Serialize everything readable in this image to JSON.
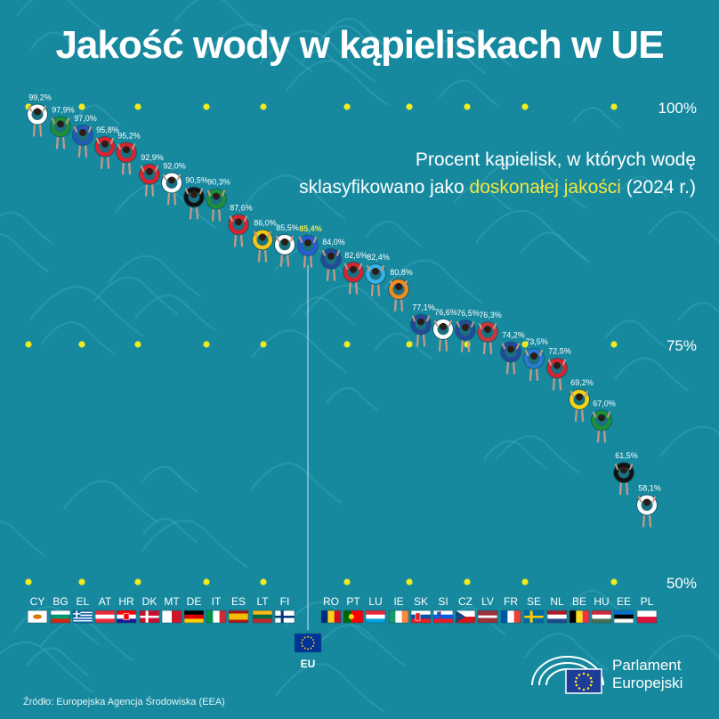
{
  "title": "Jakość wody w kąpieliskach w UE",
  "subtitle": {
    "line1": "Procent kąpielisk, w których wodę",
    "line2_prefix": "sklasyfikowano jako ",
    "line2_highlight": "doskonałej jakości",
    "line2_suffix": " (2024 r.)"
  },
  "source": "Źródło: Europejska Agencja Środowiska (EEA)",
  "logo": {
    "line1": "Parlament",
    "line2": "Europejski"
  },
  "colors": {
    "background": "#17899f",
    "highlight": "#f5e63c",
    "dot": "#f0ea1e",
    "label": "#ffffff"
  },
  "chart_data": {
    "type": "scatter",
    "ylim": [
      50,
      100
    ],
    "y_ticks": [
      "100%",
      "75%",
      "50%"
    ],
    "categories": [
      "CY",
      "BG",
      "EL",
      "AT",
      "HR",
      "DK",
      "MT",
      "DE",
      "IT",
      "ES",
      "LT",
      "FI",
      "EU",
      "RO",
      "PT",
      "LU",
      "IE",
      "SK",
      "SI",
      "CZ",
      "LV",
      "FR",
      "SE",
      "NL",
      "BE",
      "HU",
      "EE",
      "PL"
    ],
    "values": [
      99.2,
      97.9,
      97.0,
      95.8,
      95.2,
      92.9,
      92.0,
      90.5,
      90.3,
      87.6,
      86.0,
      85.5,
      85.4,
      84.0,
      82.6,
      82.4,
      80.8,
      77.1,
      76.6,
      76.5,
      76.3,
      74.2,
      73.5,
      72.5,
      69.2,
      67.0,
      61.5,
      58.1
    ],
    "value_labels": [
      "99,2%",
      "97,9%",
      "97,0%",
      "95,8%",
      "95,2%",
      "92,9%",
      "92,0%",
      "90,5%",
      "90,3%",
      "87,6%",
      "86,0%",
      "85,5%",
      "85,4%",
      "84,0%",
      "82,6%",
      "82,4%",
      "80,8%",
      "77,1%",
      "76,6%",
      "76,5%",
      "76,3%",
      "74,2%",
      "73,5%",
      "72,5%",
      "69,2%",
      "67,0%",
      "61,5%",
      "58,1%"
    ],
    "highlight_category": "EU"
  }
}
